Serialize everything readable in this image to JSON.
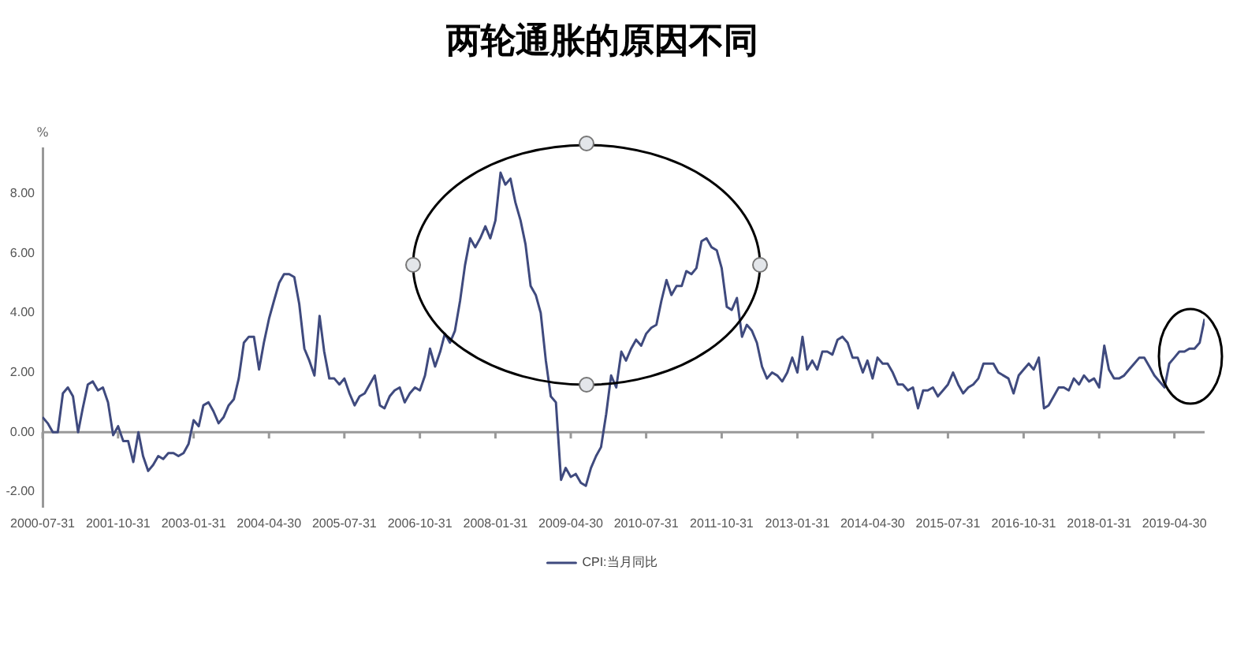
{
  "chart_data": {
    "type": "line",
    "title": "两轮通胀的原因不同",
    "ylabel": "%",
    "x": [
      "2000-07",
      "2000-08",
      "2000-09",
      "2000-10",
      "2000-11",
      "2000-12",
      "2001-01",
      "2001-02",
      "2001-03",
      "2001-04",
      "2001-05",
      "2001-06",
      "2001-07",
      "2001-08",
      "2001-09",
      "2001-10",
      "2001-11",
      "2001-12",
      "2002-01",
      "2002-02",
      "2002-03",
      "2002-04",
      "2002-05",
      "2002-06",
      "2002-07",
      "2002-08",
      "2002-09",
      "2002-10",
      "2002-11",
      "2002-12",
      "2003-01",
      "2003-02",
      "2003-03",
      "2003-04",
      "2003-05",
      "2003-06",
      "2003-07",
      "2003-08",
      "2003-09",
      "2003-10",
      "2003-11",
      "2003-12",
      "2004-01",
      "2004-02",
      "2004-03",
      "2004-04",
      "2004-05",
      "2004-06",
      "2004-07",
      "2004-08",
      "2004-09",
      "2004-10",
      "2004-11",
      "2004-12",
      "2005-01",
      "2005-02",
      "2005-03",
      "2005-04",
      "2005-05",
      "2005-06",
      "2005-07",
      "2005-08",
      "2005-09",
      "2005-10",
      "2005-11",
      "2005-12",
      "2006-01",
      "2006-02",
      "2006-03",
      "2006-04",
      "2006-05",
      "2006-06",
      "2006-07",
      "2006-08",
      "2006-09",
      "2006-10",
      "2006-11",
      "2006-12",
      "2007-01",
      "2007-02",
      "2007-03",
      "2007-04",
      "2007-05",
      "2007-06",
      "2007-07",
      "2007-08",
      "2007-09",
      "2007-10",
      "2007-11",
      "2007-12",
      "2008-01",
      "2008-02",
      "2008-03",
      "2008-04",
      "2008-05",
      "2008-06",
      "2008-07",
      "2008-08",
      "2008-09",
      "2008-10",
      "2008-11",
      "2008-12",
      "2009-01",
      "2009-02",
      "2009-03",
      "2009-04",
      "2009-05",
      "2009-06",
      "2009-07",
      "2009-08",
      "2009-09",
      "2009-10",
      "2009-11",
      "2009-12",
      "2010-01",
      "2010-02",
      "2010-03",
      "2010-04",
      "2010-05",
      "2010-06",
      "2010-07",
      "2010-08",
      "2010-09",
      "2010-10",
      "2010-11",
      "2010-12",
      "2011-01",
      "2011-02",
      "2011-03",
      "2011-04",
      "2011-05",
      "2011-06",
      "2011-07",
      "2011-08",
      "2011-09",
      "2011-10",
      "2011-11",
      "2011-12",
      "2012-01",
      "2012-02",
      "2012-03",
      "2012-04",
      "2012-05",
      "2012-06",
      "2012-07",
      "2012-08",
      "2012-09",
      "2012-10",
      "2012-11",
      "2012-12",
      "2013-01",
      "2013-02",
      "2013-03",
      "2013-04",
      "2013-05",
      "2013-06",
      "2013-07",
      "2013-08",
      "2013-09",
      "2013-10",
      "2013-11",
      "2013-12",
      "2014-01",
      "2014-02",
      "2014-03",
      "2014-04",
      "2014-05",
      "2014-06",
      "2014-07",
      "2014-08",
      "2014-09",
      "2014-10",
      "2014-11",
      "2014-12",
      "2015-01",
      "2015-02",
      "2015-03",
      "2015-04",
      "2015-05",
      "2015-06",
      "2015-07",
      "2015-08",
      "2015-09",
      "2015-10",
      "2015-11",
      "2015-12",
      "2016-01",
      "2016-02",
      "2016-03",
      "2016-04",
      "2016-05",
      "2016-06",
      "2016-07",
      "2016-08",
      "2016-09",
      "2016-10",
      "2016-11",
      "2016-12",
      "2017-01",
      "2017-02",
      "2017-03",
      "2017-04",
      "2017-05",
      "2017-06",
      "2017-07",
      "2017-08",
      "2017-09",
      "2017-10",
      "2017-11",
      "2017-12",
      "2018-01",
      "2018-02",
      "2018-03",
      "2018-04",
      "2018-05",
      "2018-06",
      "2018-07",
      "2018-08",
      "2018-09",
      "2018-10",
      "2018-11",
      "2018-12",
      "2019-01",
      "2019-02",
      "2019-03",
      "2019-04",
      "2019-05",
      "2019-06",
      "2019-07",
      "2019-08",
      "2019-09",
      "2019-10"
    ],
    "series": [
      {
        "name": "CPI:当月同比",
        "color": "#3f4a7e",
        "values": [
          0.5,
          0.3,
          0.0,
          0.0,
          1.3,
          1.5,
          1.2,
          0.0,
          0.8,
          1.6,
          1.7,
          1.4,
          1.5,
          1.0,
          -0.1,
          0.2,
          -0.3,
          -0.3,
          -1.0,
          0.0,
          -0.8,
          -1.3,
          -1.1,
          -0.8,
          -0.9,
          -0.7,
          -0.7,
          -0.8,
          -0.7,
          -0.4,
          0.4,
          0.2,
          0.9,
          1.0,
          0.7,
          0.3,
          0.5,
          0.9,
          1.1,
          1.8,
          3.0,
          3.2,
          3.2,
          2.1,
          3.0,
          3.8,
          4.4,
          5.0,
          5.3,
          5.3,
          5.2,
          4.3,
          2.8,
          2.4,
          1.9,
          3.9,
          2.7,
          1.8,
          1.8,
          1.6,
          1.8,
          1.3,
          0.9,
          1.2,
          1.3,
          1.6,
          1.9,
          0.9,
          0.8,
          1.2,
          1.4,
          1.5,
          1.0,
          1.3,
          1.5,
          1.4,
          1.9,
          2.8,
          2.2,
          2.7,
          3.3,
          3.0,
          3.4,
          4.4,
          5.6,
          6.5,
          6.2,
          6.5,
          6.9,
          6.5,
          7.1,
          8.7,
          8.3,
          8.5,
          7.7,
          7.1,
          6.3,
          4.9,
          4.6,
          4.0,
          2.4,
          1.2,
          1.0,
          -1.6,
          -1.2,
          -1.5,
          -1.4,
          -1.7,
          -1.8,
          -1.2,
          -0.8,
          -0.5,
          0.6,
          1.9,
          1.5,
          2.7,
          2.4,
          2.8,
          3.1,
          2.9,
          3.3,
          3.5,
          3.6,
          4.4,
          5.1,
          4.6,
          4.9,
          4.9,
          5.4,
          5.3,
          5.5,
          6.4,
          6.5,
          6.2,
          6.1,
          5.5,
          4.2,
          4.1,
          4.5,
          3.2,
          3.6,
          3.4,
          3.0,
          2.2,
          1.8,
          2.0,
          1.9,
          1.7,
          2.0,
          2.5,
          2.0,
          3.2,
          2.1,
          2.4,
          2.1,
          2.7,
          2.7,
          2.6,
          3.1,
          3.2,
          3.0,
          2.5,
          2.5,
          2.0,
          2.4,
          1.8,
          2.5,
          2.3,
          2.3,
          2.0,
          1.6,
          1.6,
          1.4,
          1.5,
          0.8,
          1.4,
          1.4,
          1.5,
          1.2,
          1.4,
          1.6,
          2.0,
          1.6,
          1.3,
          1.5,
          1.6,
          1.8,
          2.3,
          2.3,
          2.3,
          2.0,
          1.9,
          1.8,
          1.3,
          1.9,
          2.1,
          2.3,
          2.1,
          2.5,
          0.8,
          0.9,
          1.2,
          1.5,
          1.5,
          1.4,
          1.8,
          1.6,
          1.9,
          1.7,
          1.8,
          1.5,
          2.9,
          2.1,
          1.8,
          1.8,
          1.9,
          2.1,
          2.3,
          2.5,
          2.5,
          2.2,
          1.9,
          1.7,
          1.5,
          2.3,
          2.5,
          2.7,
          2.7,
          2.8,
          2.8,
          3.0,
          3.8
        ]
      }
    ],
    "xlim": [
      "2000-07",
      "2019-10"
    ],
    "xticks": [
      {
        "value": "2000-07",
        "label": "2000-07-31"
      },
      {
        "value": "2001-10",
        "label": "2001-10-31"
      },
      {
        "value": "2003-01",
        "label": "2003-01-31"
      },
      {
        "value": "2004-04",
        "label": "2004-04-30"
      },
      {
        "value": "2005-07",
        "label": "2005-07-31"
      },
      {
        "value": "2006-10",
        "label": "2006-10-31"
      },
      {
        "value": "2008-01",
        "label": "2008-01-31"
      },
      {
        "value": "2009-04",
        "label": "2009-04-30"
      },
      {
        "value": "2010-07",
        "label": "2010-07-31"
      },
      {
        "value": "2011-10",
        "label": "2011-10-31"
      },
      {
        "value": "2013-01",
        "label": "2013-01-31"
      },
      {
        "value": "2014-04",
        "label": "2014-04-30"
      },
      {
        "value": "2015-07",
        "label": "2015-07-31"
      },
      {
        "value": "2016-10",
        "label": "2016-10-31"
      },
      {
        "value": "2018-01",
        "label": "2018-01-31"
      },
      {
        "value": "2019-04",
        "label": "2019-04-30"
      }
    ],
    "ylim": [
      -2.5,
      9.5
    ],
    "yticks": [
      {
        "value": -2,
        "label": "-2.00"
      },
      {
        "value": 0,
        "label": "0.00"
      },
      {
        "value": 2,
        "label": "2.00"
      },
      {
        "value": 4,
        "label": "4.00"
      },
      {
        "value": 6,
        "label": "6.00"
      },
      {
        "value": 8,
        "label": "8.00"
      }
    ],
    "ref_lines": [
      {
        "axis": "y",
        "value": 0,
        "color": "#999999"
      }
    ],
    "grid": false,
    "legend": "bottom",
    "marker": "none",
    "line_style": "solid"
  }
}
